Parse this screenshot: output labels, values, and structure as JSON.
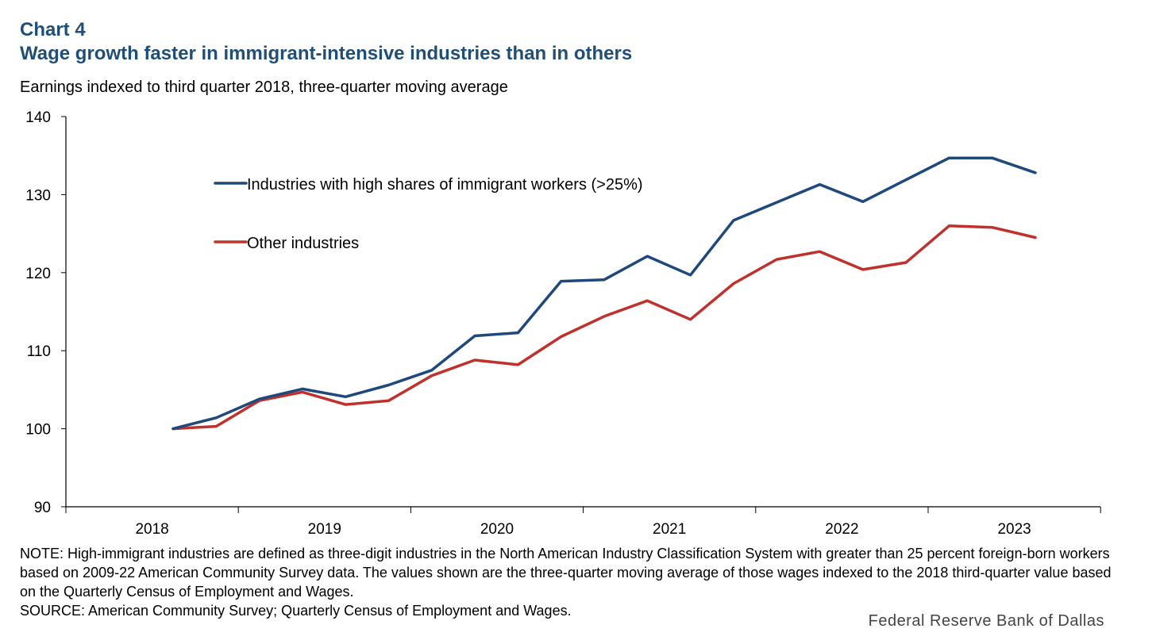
{
  "header": {
    "chart_number": "Chart 4",
    "title": "Wage growth faster in immigrant-intensive industries than in others",
    "subtitle": "Earnings indexed to third quarter 2018, three-quarter moving average"
  },
  "notes": {
    "note": "NOTE: High-immigrant industries are defined as three-digit industries in the North American Industry Classification System with greater than 25 percent foreign-born workers based on 2009-22 American Community Survey data. The values shown are the three-quarter moving average of those wages indexed to the 2018 third-quarter value based on the Quarterly Census of Employment and Wages.",
    "source": "SOURCE: American Community Survey; Quarterly Census of Employment and Wages."
  },
  "footer": {
    "credit": "Federal Reserve Bank of Dallas"
  },
  "colors": {
    "title": "#1f4e79",
    "high_immigrant": "#1f497d",
    "other": "#c0312b",
    "axis": "#000000"
  },
  "chart_data": {
    "type": "line",
    "ylim": [
      90,
      140
    ],
    "yticks": [
      "90",
      "100",
      "110",
      "120",
      "130",
      "140"
    ],
    "ytick_values": [
      90,
      100,
      110,
      120,
      130,
      140
    ],
    "xtick_labels": [
      "2018",
      "2019",
      "2020",
      "2021",
      "2022",
      "2023"
    ],
    "x": [
      "2018Q3",
      "2018Q4",
      "2019Q1",
      "2019Q2",
      "2019Q3",
      "2019Q4",
      "2020Q1",
      "2020Q2",
      "2020Q3",
      "2020Q4",
      "2021Q1",
      "2021Q2",
      "2021Q3",
      "2021Q4",
      "2022Q1",
      "2022Q2",
      "2022Q3",
      "2022Q4",
      "2023Q1",
      "2023Q2",
      "2023Q3"
    ],
    "legend_position": "top-left",
    "grid": false,
    "series": [
      {
        "name": "Industries with high shares of immigrant workers (>25%)",
        "color": "#1f497d",
        "values": [
          100.0,
          101.4,
          103.8,
          105.1,
          104.1,
          105.6,
          107.5,
          111.9,
          112.3,
          118.9,
          119.1,
          122.1,
          119.7,
          126.7,
          129.0,
          131.3,
          129.1,
          131.9,
          134.7,
          134.7,
          132.8
        ]
      },
      {
        "name": "Other industries",
        "color": "#c0312b",
        "values": [
          100.0,
          100.3,
          103.6,
          104.7,
          103.1,
          103.6,
          106.8,
          108.8,
          108.2,
          111.8,
          114.4,
          116.4,
          114.0,
          118.6,
          121.7,
          122.7,
          120.4,
          121.3,
          126.0,
          125.8,
          124.5
        ]
      }
    ]
  }
}
